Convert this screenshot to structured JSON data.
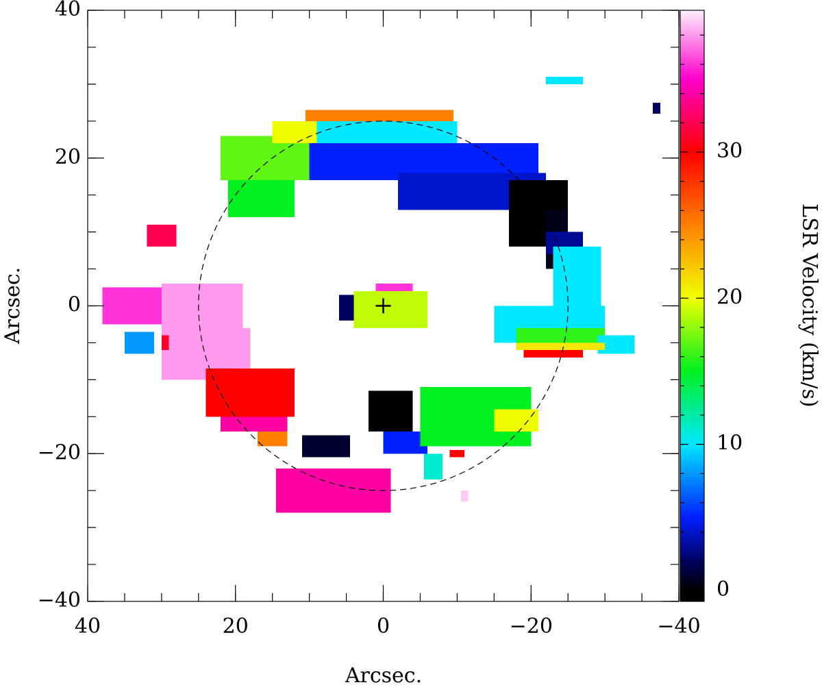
{
  "chart_data": {
    "type": "velocity-map",
    "xlabel": "Arcsec.",
    "ylabel": "Arcsec.",
    "colorbar_label": "LSR Velocity (km/s)",
    "xlim": [
      40,
      -40
    ],
    "ylim": [
      -40,
      40
    ],
    "xticks": [
      40,
      20,
      0,
      {
        "value": -20,
        "label": "−20"
      },
      {
        "value": -40,
        "label": "−40"
      }
    ],
    "yticks": [
      {
        "value": -40,
        "label": "−40"
      },
      {
        "value": -20,
        "label": "−20"
      },
      0,
      20,
      40
    ],
    "minor_tick_step": 5,
    "colorbar_lim": [
      -0.75,
      39.7
    ],
    "colorbar_ticks": [
      0,
      10,
      20,
      30
    ],
    "colormap": [
      {
        "value": 0,
        "color": "#000000"
      },
      {
        "value": 2,
        "color": "#000060"
      },
      {
        "value": 5,
        "color": "#0020ff"
      },
      {
        "value": 10,
        "color": "#00e8ff"
      },
      {
        "value": 15,
        "color": "#00f020"
      },
      {
        "value": 20,
        "color": "#f0ff00"
      },
      {
        "value": 25,
        "color": "#ff8000"
      },
      {
        "value": 30,
        "color": "#ff0000"
      },
      {
        "value": 35,
        "color": "#ff00cc"
      },
      {
        "value": 39.7,
        "color": "#fff0ff"
      }
    ],
    "reference_circle_radius": 25,
    "center_marker": [
      0,
      0
    ],
    "regions": [
      {
        "x": [
          10.5,
          -9.5
        ],
        "y": [
          24.5,
          26.5
        ],
        "value": 25
      },
      {
        "x": [
          22,
          10
        ],
        "y": [
          17,
          23
        ],
        "value": 17
      },
      {
        "x": [
          21,
          12
        ],
        "y": [
          12,
          17
        ],
        "value": 15
      },
      {
        "x": [
          15,
          9
        ],
        "y": [
          22,
          25
        ],
        "value": 20
      },
      {
        "x": [
          9,
          -10
        ],
        "y": [
          21,
          25
        ],
        "value": 10
      },
      {
        "x": [
          10,
          -21
        ],
        "y": [
          17,
          22
        ],
        "value": 5
      },
      {
        "x": [
          -2,
          -22
        ],
        "y": [
          13,
          18
        ],
        "value": 4
      },
      {
        "x": [
          -17,
          -25
        ],
        "y": [
          8,
          17
        ],
        "value": 0
      },
      {
        "x": [
          -22,
          -25
        ],
        "y": [
          5,
          13
        ],
        "value": 0.5
      },
      {
        "x": [
          -22,
          -27
        ],
        "y": [
          7,
          10
        ],
        "value": 3
      },
      {
        "x": [
          -23,
          -29.5
        ],
        "y": [
          0,
          8
        ],
        "value": 10
      },
      {
        "x": [
          -15,
          -30
        ],
        "y": [
          -5,
          0
        ],
        "value": 10
      },
      {
        "x": [
          -18,
          -30
        ],
        "y": [
          -6,
          -3
        ],
        "value": 16
      },
      {
        "x": [
          -29,
          -34
        ],
        "y": [
          -6.5,
          -4
        ],
        "value": 10
      },
      {
        "x": [
          -18,
          -30
        ],
        "y": [
          -6,
          -5
        ],
        "value": 21
      },
      {
        "x": [
          -19,
          -27
        ],
        "y": [
          -7,
          -6
        ],
        "value": 30
      },
      {
        "x": [
          -22,
          -27
        ],
        "y": [
          30,
          31
        ],
        "value": 10
      },
      {
        "x": [
          -36.5,
          -37.5
        ],
        "y": [
          26,
          27.5
        ],
        "value": 2
      },
      {
        "x": [
          32,
          28
        ],
        "y": [
          8,
          11
        ],
        "value": 32
      },
      {
        "x": [
          38,
          29
        ],
        "y": [
          -2.5,
          2.5
        ],
        "value": 36
      },
      {
        "x": [
          30,
          19
        ],
        "y": [
          -10,
          3
        ],
        "value": 38
      },
      {
        "x": [
          25,
          18
        ],
        "y": [
          -10,
          -3
        ],
        "value": 38
      },
      {
        "x": [
          35,
          31
        ],
        "y": [
          -6.5,
          -3.5
        ],
        "value": 8
      },
      {
        "x": [
          30,
          29
        ],
        "y": [
          -6,
          -4
        ],
        "value": 31
      },
      {
        "x": [
          4,
          -6
        ],
        "y": [
          -3,
          2
        ],
        "value": 19
      },
      {
        "x": [
          1,
          -4
        ],
        "y": [
          2,
          3
        ],
        "value": 36
      },
      {
        "x": [
          6,
          4
        ],
        "y": [
          -2,
          1.5
        ],
        "value": 2
      },
      {
        "x": [
          24,
          12
        ],
        "y": [
          -15,
          -8.5
        ],
        "value": 30
      },
      {
        "x": [
          22,
          13
        ],
        "y": [
          -17,
          -15
        ],
        "value": 34
      },
      {
        "x": [
          17,
          13
        ],
        "y": [
          -19,
          -17
        ],
        "value": 25
      },
      {
        "x": [
          2,
          -4
        ],
        "y": [
          -17,
          -11.5
        ],
        "value": 0
      },
      {
        "x": [
          11,
          4.5
        ],
        "y": [
          -20.5,
          -17.5
        ],
        "value": 1
      },
      {
        "x": [
          0,
          -6
        ],
        "y": [
          -20,
          -17
        ],
        "value": 5
      },
      {
        "x": [
          -5,
          -20
        ],
        "y": [
          -19,
          -11
        ],
        "value": 15
      },
      {
        "x": [
          -15,
          -21
        ],
        "y": [
          -17,
          -14
        ],
        "value": 20
      },
      {
        "x": [
          -5.5,
          -8
        ],
        "y": [
          -23.5,
          -20
        ],
        "value": 11
      },
      {
        "x": [
          -9,
          -11
        ],
        "y": [
          -20.5,
          -19.5
        ],
        "value": 30
      },
      {
        "x": [
          14.5,
          -1
        ],
        "y": [
          -28,
          -22
        ],
        "value": 34
      },
      {
        "x": [
          -10.5,
          -11.5
        ],
        "y": [
          -26.5,
          -25
        ],
        "value": 39
      }
    ]
  }
}
